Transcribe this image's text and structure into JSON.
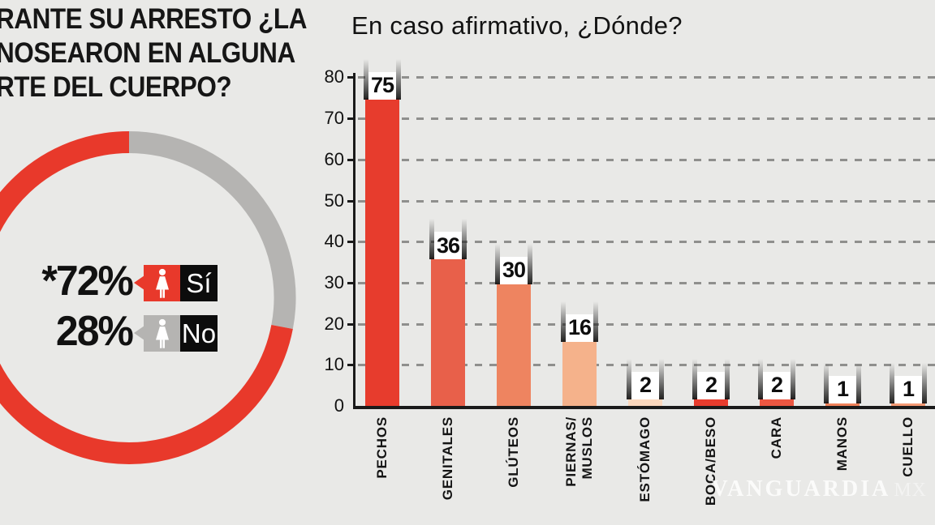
{
  "background": "#e9e9e7",
  "header": {
    "title_lines": [
      "RANTE SU ARRESTO ¿LA",
      "NOSEARON EN ALGUNA",
      "RTE DEL CUERPO?"
    ]
  },
  "donut_legend": {
    "yes": {
      "pct_label": "*72%",
      "answer": "Sí",
      "color": "#e8392b"
    },
    "no": {
      "pct_label": "28%",
      "answer": "No",
      "color": "#b5b4b2"
    }
  },
  "watermark": {
    "brand": "VANGUARDIA",
    "suffix": "MX"
  },
  "chart_data": [
    {
      "type": "pie",
      "subtype": "donut",
      "labels": [
        "Sí",
        "No"
      ],
      "values": [
        72,
        28
      ],
      "colors": [
        "#e8392b",
        "#b5b4b2"
      ],
      "annotation": "*72% Sí, 28% No",
      "legend_position": "center-left",
      "start_angle": "top",
      "direction": "No segment clockwise from top"
    },
    {
      "type": "bar",
      "title": "En caso afirmativo, ¿Dónde?",
      "categories": [
        "PECHOS",
        "GENITALES",
        "GLÚTEOS",
        "PIERNAS/MUSLOS",
        "ESTÓMAGO",
        "BOCA/BESO",
        "CARA",
        "MANOS",
        "CUELLO"
      ],
      "category_lines": [
        [
          "PECHOS"
        ],
        [
          "GENITALES"
        ],
        [
          "GLÚTEOS"
        ],
        [
          "PIERNAS/",
          "MUSLOS"
        ],
        [
          "ESTÓMAGO"
        ],
        [
          "BOCA/BESO"
        ],
        [
          "CARA"
        ],
        [
          "MANOS"
        ],
        [
          "CUELLO"
        ]
      ],
      "values": [
        75,
        36,
        30,
        16,
        2,
        2,
        2,
        1,
        1
      ],
      "bar_colors": [
        "#e73c2d",
        "#e8604a",
        "#ee8460",
        "#f5b28b",
        "#fbd8bd",
        "#e73c2d",
        "#ec5742",
        "#f0825a",
        "#f49a74"
      ],
      "value_labels": [
        "75",
        "36",
        "30",
        "16",
        "2",
        "2",
        "2",
        "1",
        "1"
      ],
      "xlabel": "",
      "ylabel": "",
      "ylim": [
        0,
        80
      ],
      "yticks": [
        0,
        10,
        20,
        30,
        40,
        50,
        60,
        70,
        80
      ],
      "grid": "horizontal-dashed",
      "axis_color": "#1a1a1a",
      "grid_color": "#8f8f8d"
    }
  ]
}
